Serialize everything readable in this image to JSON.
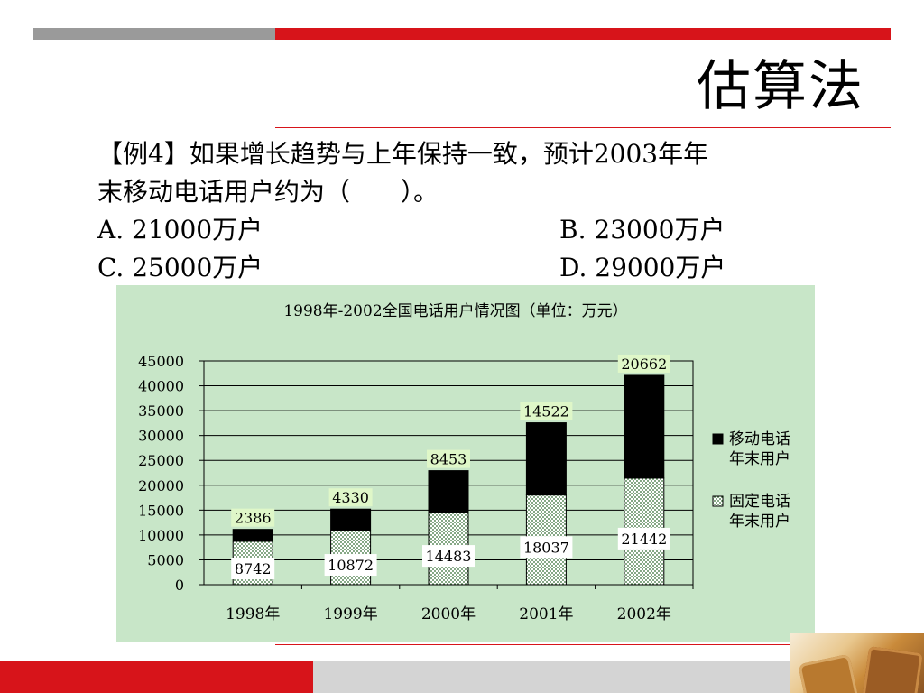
{
  "slide": {
    "title": "估算法",
    "question": {
      "line1": "【例4】如果增长趋势与上年保持一致，预计2003年年",
      "line2": "末移动电话用户约为（　　）。",
      "options": [
        {
          "label": "A.",
          "text": "21000万户"
        },
        {
          "label": "B.",
          "text": "23000万户"
        },
        {
          "label": "C.",
          "text": "25000万户"
        },
        {
          "label": "D.",
          "text": "29000万户"
        }
      ]
    }
  },
  "colors": {
    "accent_red": "#d7141a",
    "bar_gray": "#9a9a9a",
    "panel_bg": "#c8e6c8",
    "mobile_series": "#000000",
    "fixed_series": "#d9f2d9"
  },
  "chart_data": {
    "type": "bar",
    "stacked": true,
    "title": "1998年-2002全国电话用户情况图（单位：万元）",
    "categories": [
      "1998年",
      "1999年",
      "2000年",
      "2001年",
      "2002年"
    ],
    "series": [
      {
        "name": "固定电话年末用户",
        "legend_lines": [
          "固定电话",
          "年末用户"
        ],
        "values": [
          8742,
          10872,
          14483,
          18037,
          21442
        ],
        "pattern": "dotted"
      },
      {
        "name": "移动电话年末用户",
        "legend_lines": [
          "移动电话",
          "年末用户"
        ],
        "values": [
          2386,
          4330,
          8453,
          14522,
          20662
        ],
        "pattern": "solid"
      }
    ],
    "ylim": [
      0,
      45000
    ],
    "yticks": [
      0,
      5000,
      10000,
      15000,
      20000,
      25000,
      30000,
      35000,
      40000,
      45000
    ],
    "grid": true,
    "legend": "right"
  }
}
